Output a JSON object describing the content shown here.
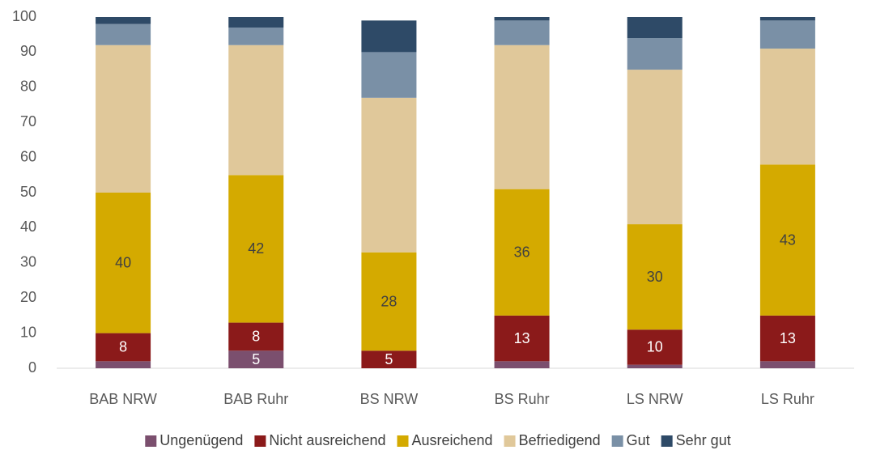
{
  "chart_data": {
    "type": "stacked_bar",
    "categories": [
      "BAB NRW",
      "BAB Ruhr",
      "BS NRW",
      "BS Ruhr",
      "LS NRW",
      "LS Ruhr"
    ],
    "series": [
      {
        "name": "Ungenügend",
        "color": "#7b4f6e",
        "label_color": "#ffffff",
        "values": [
          2,
          5,
          0,
          2,
          1,
          2
        ],
        "value_labels": [
          null,
          "5",
          null,
          null,
          null,
          null
        ]
      },
      {
        "name": "Nicht ausreichend",
        "color": "#8b1a1a",
        "label_color": "#ffffff",
        "values": [
          8,
          8,
          5,
          13,
          10,
          13
        ],
        "value_labels": [
          "8",
          "8",
          "5",
          "13",
          "10",
          "13"
        ]
      },
      {
        "name": "Ausreichend",
        "color": "#d4aa00",
        "label_color": "#404040",
        "values": [
          40,
          42,
          28,
          36,
          30,
          43
        ],
        "value_labels": [
          "40",
          "42",
          "28",
          "36",
          "30",
          "43"
        ]
      },
      {
        "name": "Befriedigend",
        "color": "#e0c89a",
        "values": [
          42,
          37,
          44,
          41,
          44,
          33
        ]
      },
      {
        "name": "Gut",
        "color": "#7a90a6",
        "values": [
          6,
          5,
          13,
          7,
          9,
          8
        ]
      },
      {
        "name": "Sehr gut",
        "color": "#2e4a67",
        "values": [
          2,
          3,
          9,
          1,
          6,
          1
        ]
      }
    ],
    "ylim": [
      0,
      100
    ],
    "yticks": [
      0,
      10,
      20,
      30,
      40,
      50,
      60,
      70,
      80,
      90,
      100
    ],
    "grid": false,
    "legend": "bottom"
  }
}
